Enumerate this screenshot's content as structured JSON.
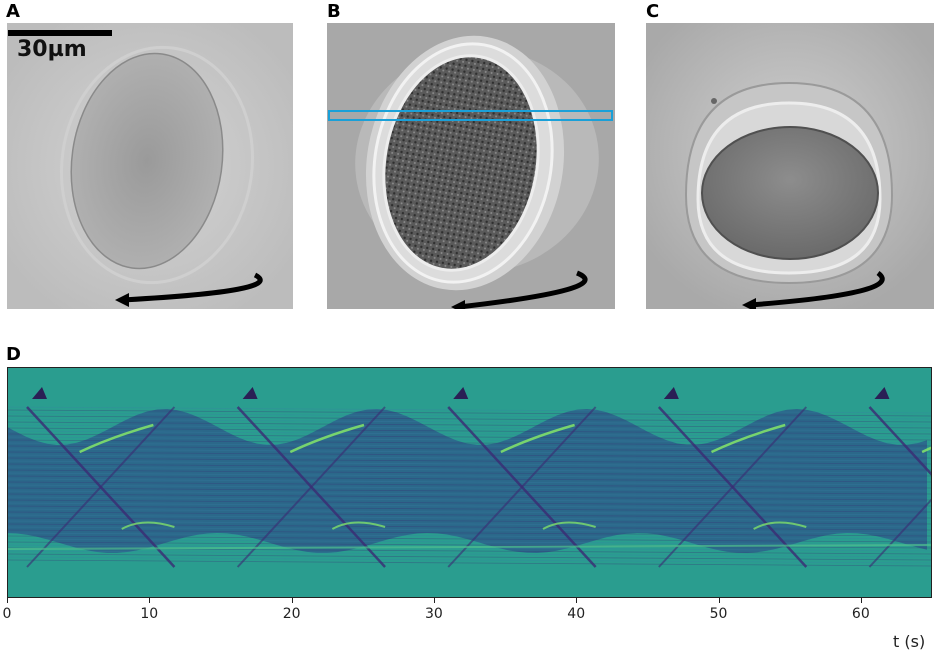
{
  "panels": {
    "a": {
      "letter": "A",
      "scalebar_label": "30µm"
    },
    "b": {
      "letter": "B"
    },
    "c": {
      "letter": "C"
    },
    "d": {
      "letter": "D"
    }
  },
  "kymograph_axis": {
    "xlabel": "t (s)",
    "xlim": [
      0,
      65
    ],
    "ticks": [
      {
        "value": 0,
        "label": "0"
      },
      {
        "value": 10,
        "label": "10"
      },
      {
        "value": 20,
        "label": "20"
      },
      {
        "value": 30,
        "label": "30"
      },
      {
        "value": 40,
        "label": "40"
      },
      {
        "value": 50,
        "label": "50"
      },
      {
        "value": 60,
        "label": "60"
      }
    ],
    "rotation_period_s": 14.8
  },
  "colors": {
    "micro_bg": "#bdbdbd",
    "selection_box": "#1aa0d8",
    "kymo_bg": "#2a9d8f",
    "kymo_dark": "#3b2b73",
    "kymo_bright": "#7fe06a"
  }
}
